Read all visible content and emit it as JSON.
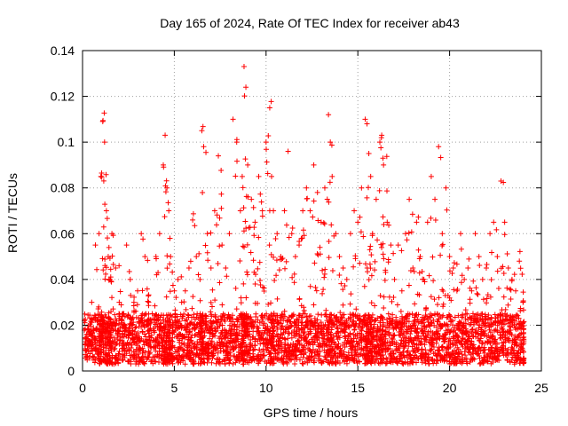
{
  "chart_data": {
    "type": "scatter",
    "title": "Day 165 of 2024, Rate Of TEC Index for receiver ab43",
    "xlabel": "GPS time / hours",
    "ylabel": "ROTI / TECUs",
    "xlim": [
      0,
      25
    ],
    "ylim": [
      0,
      0.14
    ],
    "xticks": [
      "0",
      "5",
      "10",
      "15",
      "20",
      "25"
    ],
    "yticks": [
      "0",
      "0.02",
      "0.04",
      "0.06",
      "0.08",
      "0.1",
      "0.12",
      "0.14"
    ],
    "grid": true,
    "marker": "+",
    "color": "#ff0000",
    "series": [
      {
        "x": [
          0.1,
          0.3,
          0.5,
          0.7,
          0.9,
          1.0,
          1.1,
          1.2,
          1.3,
          1.4,
          1.5,
          1.6,
          1.8,
          2.0,
          2.2,
          2.4,
          2.6,
          2.8,
          3.0,
          3.2,
          3.4,
          3.6,
          3.8,
          4.0,
          4.2,
          4.4,
          4.5,
          4.6,
          4.7,
          4.8,
          5.0,
          5.2,
          5.4,
          5.6,
          5.8,
          6.0,
          6.2,
          6.4,
          6.5,
          6.6,
          6.8,
          7.0,
          7.2,
          7.4,
          7.6,
          7.8,
          8.0,
          8.2,
          8.4,
          8.6,
          8.7,
          8.8,
          8.9,
          9.0,
          9.2,
          9.4,
          9.6,
          9.8,
          10.0,
          10.2,
          10.3,
          10.4,
          10.6,
          10.8,
          11.0,
          11.2,
          11.4,
          11.6,
          11.8,
          12.0,
          12.2,
          12.4,
          12.6,
          12.8,
          13.0,
          13.2,
          13.4,
          13.5,
          13.6,
          13.8,
          14.0,
          14.2,
          14.4,
          14.6,
          14.8,
          15.0,
          15.2,
          15.4,
          15.5,
          15.6,
          15.7,
          15.8,
          16.0,
          16.2,
          16.3,
          16.4,
          16.6,
          16.8,
          17.0,
          17.2,
          17.4,
          17.6,
          17.8,
          18.0,
          18.2,
          18.4,
          18.6,
          18.8,
          19.0,
          19.2,
          19.4,
          19.6,
          19.8,
          20.0,
          20.2,
          20.4,
          20.6,
          20.8,
          21.0,
          21.2,
          21.4,
          21.6,
          21.8,
          22.0,
          22.2,
          22.4,
          22.6,
          22.8,
          23.0,
          23.2,
          23.4,
          23.6,
          23.8,
          24.0
        ],
        "y": [
          0.022,
          0.018,
          0.03,
          0.055,
          0.06,
          0.085,
          0.109,
          0.1,
          0.07,
          0.05,
          0.04,
          0.06,
          0.045,
          0.03,
          0.025,
          0.055,
          0.04,
          0.03,
          0.035,
          0.06,
          0.05,
          0.03,
          0.025,
          0.05,
          0.06,
          0.09,
          0.103,
          0.08,
          0.07,
          0.05,
          0.035,
          0.04,
          0.03,
          0.035,
          0.045,
          0.066,
          0.05,
          0.04,
          0.105,
          0.098,
          0.06,
          0.045,
          0.07,
          0.094,
          0.055,
          0.045,
          0.06,
          0.11,
          0.1,
          0.07,
          0.085,
          0.133,
          0.124,
          0.09,
          0.075,
          0.065,
          0.085,
          0.07,
          0.1,
          0.115,
          0.085,
          0.07,
          0.06,
          0.05,
          0.07,
          0.096,
          0.06,
          0.05,
          0.055,
          0.07,
          0.08,
          0.07,
          0.09,
          0.078,
          0.065,
          0.08,
          0.112,
          0.1,
          0.085,
          0.06,
          0.05,
          0.045,
          0.04,
          0.06,
          0.07,
          0.065,
          0.08,
          0.11,
          0.108,
          0.095,
          0.085,
          0.06,
          0.075,
          0.1,
          0.103,
          0.09,
          0.065,
          0.055,
          0.04,
          0.055,
          0.035,
          0.06,
          0.075,
          0.045,
          0.065,
          0.05,
          0.04,
          0.065,
          0.085,
          0.075,
          0.098,
          0.06,
          0.08,
          0.05,
          0.045,
          0.035,
          0.06,
          0.04,
          0.045,
          0.035,
          0.06,
          0.05,
          0.04,
          0.045,
          0.06,
          0.065,
          0.05,
          0.083,
          0.065,
          0.045,
          0.04,
          0.035,
          0.048,
          0.03
        ]
      }
    ]
  }
}
